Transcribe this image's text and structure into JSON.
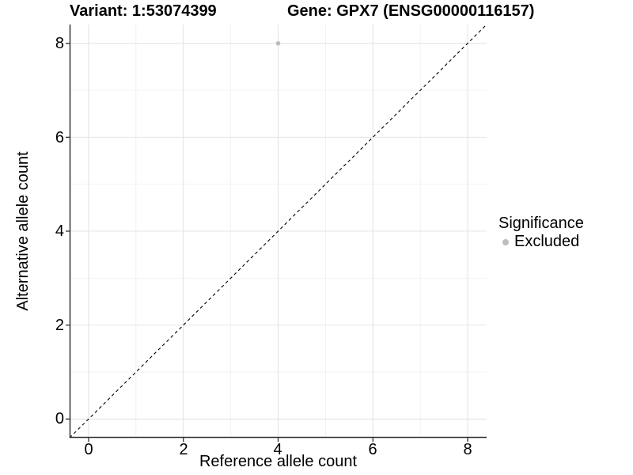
{
  "header": {
    "variant": "Variant: 1:53074399",
    "gene": "Gene: GPX7 (ENSG00000116157)"
  },
  "axes": {
    "x": {
      "label": "Reference allele count",
      "tick_labels": [
        "0",
        "2",
        "4",
        "6",
        "8"
      ],
      "major": [
        0,
        2,
        4,
        6,
        8
      ],
      "minor": [
        1,
        3,
        5,
        7
      ]
    },
    "y": {
      "label": "Alternative allele count",
      "tick_labels": [
        "0",
        "2",
        "4",
        "6",
        "8"
      ],
      "major": [
        0,
        2,
        4,
        6,
        8
      ],
      "minor": [
        1,
        3,
        5,
        7
      ]
    }
  },
  "legend": {
    "title": "Significance",
    "items": [
      {
        "label": "Excluded",
        "color": "#bdbdbd"
      }
    ]
  },
  "colors": {
    "grid_major": "#e4e4e4",
    "grid_minor": "#f1f1f1",
    "axis_line": "#333333",
    "tick_mark": "#333333",
    "reference_line": "#000000",
    "point": "#bdbdbd",
    "background": "#ffffff"
  },
  "chart_data": {
    "type": "scatter",
    "title": "Variant: 1:53074399    Gene: GPX7 (ENSG00000116157)",
    "xlabel": "Reference allele count",
    "ylabel": "Alternative allele count",
    "xlim": [
      -0.4,
      8.4
    ],
    "ylim": [
      -0.4,
      8.4
    ],
    "x_ticks": [
      0,
      2,
      4,
      6,
      8
    ],
    "y_ticks": [
      0,
      2,
      4,
      6,
      8
    ],
    "grid": "on",
    "legend_position": "right",
    "series": [
      {
        "name": "Excluded",
        "color": "#bdbdbd",
        "points": [
          {
            "x": 4,
            "y": 8
          }
        ]
      }
    ],
    "reference_line": {
      "kind": "identity y=x",
      "style": "dashed",
      "color": "#000000"
    }
  }
}
